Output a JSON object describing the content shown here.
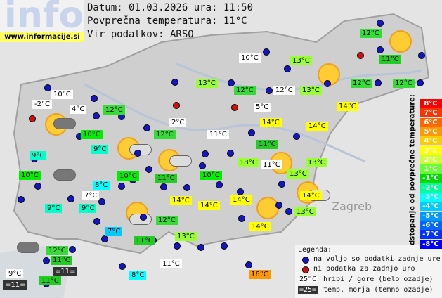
{
  "header": {
    "logo": "info",
    "site": "www.informacije.si",
    "date": "Datum: 01.03.2026 ura: 11:50",
    "average": "Povprečna temperatura: 11°C",
    "source": "Vir podatkov: ARSO"
  },
  "places": [
    "Zagreb"
  ],
  "stations": [
    {
      "label": "12°C",
      "color": "#33dd33"
    },
    {
      "label": "11°C",
      "color": "#22cc22"
    },
    {
      "label": "10°C",
      "color": "#ffffff"
    },
    {
      "label": "13°C",
      "color": "#99ff33"
    },
    {
      "label": "13°C",
      "color": "#99ff33"
    },
    {
      "label": "12°C",
      "color": "#33dd33"
    },
    {
      "label": "12°C",
      "color": "#ffffff"
    },
    {
      "label": "13°C",
      "color": "#99ff33"
    },
    {
      "label": "12°C",
      "color": "#33dd33"
    },
    {
      "label": "12°C",
      "color": "#33dd33"
    },
    {
      "label": "10°C",
      "color": "#ffffff"
    },
    {
      "label": "-2°C",
      "color": "#ffffff"
    },
    {
      "label": "4°C",
      "color": "#ffffff"
    },
    {
      "label": "12°C",
      "color": "#33dd33"
    },
    {
      "label": "5°C",
      "color": "#ffffff"
    },
    {
      "label": "14°C",
      "color": "#ffff00"
    },
    {
      "label": "2°C",
      "color": "#ffffff"
    },
    {
      "label": "14°C",
      "color": "#ffff00"
    },
    {
      "label": "14°C",
      "color": "#ffff00"
    },
    {
      "label": "10°C",
      "color": "#00ee00"
    },
    {
      "label": "12°C",
      "color": "#33dd33"
    },
    {
      "label": "11°C",
      "color": "#ffffff"
    },
    {
      "label": "11°C",
      "color": "#22cc22"
    },
    {
      "label": "9°C",
      "color": "#00ffcc"
    },
    {
      "label": "9°C",
      "color": "#00ffcc"
    },
    {
      "label": "13°C",
      "color": "#99ff33"
    },
    {
      "label": "11°C",
      "color": "#ffffff"
    },
    {
      "label": "13°C",
      "color": "#99ff33"
    },
    {
      "label": "13°C",
      "color": "#99ff33"
    },
    {
      "label": "10°C",
      "color": "#00ee00"
    },
    {
      "label": "10°C",
      "color": "#00ee00"
    },
    {
      "label": "11°C",
      "color": "#22cc22"
    },
    {
      "label": "10°C",
      "color": "#00ee00"
    },
    {
      "label": "8°C",
      "color": "#00ffff"
    },
    {
      "label": "7°C",
      "color": "#ffffff"
    },
    {
      "label": "14°C",
      "color": "#ffff00"
    },
    {
      "label": "14°C",
      "color": "#ffff00"
    },
    {
      "label": "14°C",
      "color": "#ffff00"
    },
    {
      "label": "14°C",
      "color": "#ffff00"
    },
    {
      "label": "9°C",
      "color": "#00ffcc"
    },
    {
      "label": "9°C",
      "color": "#00ffcc"
    },
    {
      "label": "12°C",
      "color": "#33dd33"
    },
    {
      "label": "13°C",
      "color": "#99ff33"
    },
    {
      "label": "14°C",
      "color": "#ffff00"
    },
    {
      "label": "7°C",
      "color": "#00ccff"
    },
    {
      "label": "13°C",
      "color": "#99ff33"
    },
    {
      "label": "11°C",
      "color": "#22cc22"
    },
    {
      "label": "12°C",
      "color": "#33dd33"
    },
    {
      "label": "11°C",
      "color": "#22cc22"
    },
    {
      "label": "=11=",
      "color": "#333333"
    },
    {
      "label": "9°C",
      "color": "#ffffff"
    },
    {
      "label": "=11=",
      "color": "#333333"
    },
    {
      "label": "11°C",
      "color": "#22cc22"
    },
    {
      "label": "8°C",
      "color": "#00ffff"
    },
    {
      "label": "11°C",
      "color": "#ffffff"
    },
    {
      "label": "16°C",
      "color": "#ff9900"
    }
  ],
  "scale_title": "Odstopanje od povprečne temperature:",
  "scale": [
    {
      "label": "8°C",
      "color": "#ff0000"
    },
    {
      "label": "7°C",
      "color": "#ff3300"
    },
    {
      "label": "6°C",
      "color": "#ff6600"
    },
    {
      "label": "5°C",
      "color": "#ff9900"
    },
    {
      "label": "4°C",
      "color": "#ffcc00"
    },
    {
      "label": "3°C",
      "color": "#ffff00"
    },
    {
      "label": "2°C",
      "color": "#ccff33"
    },
    {
      "label": "1°C",
      "color": "#66ff33"
    },
    {
      "label": "-1°C",
      "color": "#00dd00"
    },
    {
      "label": "-2°C",
      "color": "#00ff99"
    },
    {
      "label": "-3°C",
      "color": "#00ffff"
    },
    {
      "label": "-4°C",
      "color": "#00ccff"
    },
    {
      "label": "-5°C",
      "color": "#0099ff"
    },
    {
      "label": "-6°C",
      "color": "#0066ff"
    },
    {
      "label": "-7°C",
      "color": "#0033ff"
    },
    {
      "label": "-8°C",
      "color": "#0000ff"
    }
  ],
  "legend": {
    "title": "Legenda:",
    "available": "na voljo so podatki zadnje ure",
    "missing": "ni podatka za zadnjo uro",
    "hill_sample": "25°C",
    "hill": "hribi / gore (belo ozadje)",
    "sea_sample": "=25=",
    "sea": "temp. morja (temno ozadje)"
  }
}
